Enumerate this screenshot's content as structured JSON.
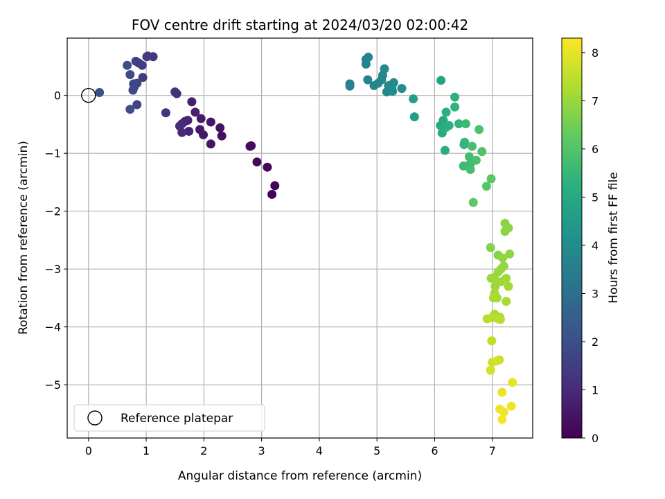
{
  "chart_data": {
    "type": "scatter",
    "title": "FOV centre drift starting at 2024/03/20 02:00:42",
    "xlabel": "Angular distance from reference (arcmin)",
    "ylabel": "Rotation from reference (arcmin)",
    "xlim": [
      -0.37,
      7.7
    ],
    "ylim": [
      -5.92,
      0.99
    ],
    "xticks": [
      0,
      1,
      2,
      3,
      4,
      5,
      6,
      7
    ],
    "yticks": [
      0,
      -1,
      -2,
      -3,
      -4,
      -5
    ],
    "xtick_labels": [
      "0",
      "1",
      "2",
      "3",
      "4",
      "5",
      "6",
      "7"
    ],
    "ytick_labels": [
      "0",
      "−1",
      "−2",
      "−3",
      "−4",
      "−5"
    ],
    "grid": true,
    "colormap": "viridis",
    "colorbar": {
      "label": "Hours from first FF file",
      "range": [
        0,
        8.3
      ],
      "ticks": [
        0,
        1,
        2,
        3,
        4,
        5,
        6,
        7,
        8
      ],
      "tick_labels": [
        "0",
        "1",
        "2",
        "3",
        "4",
        "5",
        "6",
        "7",
        "8"
      ]
    },
    "legend": {
      "position": "lower-left",
      "entries": [
        {
          "name": "Reference platepar",
          "marker": "open-circle"
        }
      ]
    },
    "reference_point": {
      "x": 0,
      "y": 0
    },
    "series": [
      {
        "values": [
          {
            "x": 3.18,
            "y": -1.71,
            "c": 0.05
          },
          {
            "x": 3.23,
            "y": -1.56,
            "c": 0.1
          },
          {
            "x": 3.1,
            "y": -1.24,
            "c": 0.15
          },
          {
            "x": 2.92,
            "y": -1.15,
            "c": 0.2
          },
          {
            "x": 2.82,
            "y": -0.87,
            "c": 0.25
          },
          {
            "x": 2.8,
            "y": -0.88,
            "c": 0.28
          },
          {
            "x": 2.31,
            "y": -0.7,
            "c": 0.35
          },
          {
            "x": 2.28,
            "y": -0.56,
            "c": 0.4
          },
          {
            "x": 2.12,
            "y": -0.84,
            "c": 0.45
          },
          {
            "x": 2.12,
            "y": -0.46,
            "c": 0.5
          },
          {
            "x": 1.99,
            "y": -0.68,
            "c": 0.55
          },
          {
            "x": 1.93,
            "y": -0.59,
            "c": 0.6
          },
          {
            "x": 1.95,
            "y": -0.4,
            "c": 0.65
          },
          {
            "x": 1.85,
            "y": -0.29,
            "c": 0.7
          },
          {
            "x": 1.79,
            "y": -0.11,
            "c": 0.75
          },
          {
            "x": 1.74,
            "y": -0.62,
            "c": 0.8
          },
          {
            "x": 1.72,
            "y": -0.43,
            "c": 0.85
          },
          {
            "x": 1.67,
            "y": -0.45,
            "c": 0.9
          },
          {
            "x": 1.62,
            "y": -0.49,
            "c": 0.95
          },
          {
            "x": 1.62,
            "y": -0.64,
            "c": 1.0
          },
          {
            "x": 1.58,
            "y": -0.53,
            "c": 1.05
          },
          {
            "x": 1.53,
            "y": 0.03,
            "c": 1.1
          },
          {
            "x": 1.5,
            "y": 0.06,
            "c": 1.15
          },
          {
            "x": 1.34,
            "y": -0.3,
            "c": 1.2
          },
          {
            "x": 1.12,
            "y": 0.67,
            "c": 1.3
          },
          {
            "x": 1.03,
            "y": 0.68,
            "c": 1.35
          },
          {
            "x": 1.01,
            "y": 0.67,
            "c": 1.4
          },
          {
            "x": 0.94,
            "y": 0.31,
            "c": 1.45
          },
          {
            "x": 0.93,
            "y": 0.52,
            "c": 1.5
          },
          {
            "x": 0.87,
            "y": 0.56,
            "c": 1.55
          },
          {
            "x": 0.82,
            "y": 0.59,
            "c": 1.6
          },
          {
            "x": 0.84,
            "y": 0.21,
            "c": 1.65
          },
          {
            "x": 0.84,
            "y": -0.16,
            "c": 1.7
          },
          {
            "x": 0.79,
            "y": 0.14,
            "c": 1.75
          },
          {
            "x": 0.78,
            "y": 0.2,
            "c": 1.8
          },
          {
            "x": 0.77,
            "y": 0.09,
            "c": 1.85
          },
          {
            "x": 0.72,
            "y": 0.36,
            "c": 1.9
          },
          {
            "x": 0.67,
            "y": 0.52,
            "c": 1.95
          },
          {
            "x": 0.72,
            "y": -0.24,
            "c": 2.0
          },
          {
            "x": 0.19,
            "y": 0.05,
            "c": 2.05
          },
          {
            "x": 4.53,
            "y": 0.2,
            "c": 3.6
          },
          {
            "x": 4.53,
            "y": 0.16,
            "c": 3.62
          },
          {
            "x": 4.81,
            "y": 0.54,
            "c": 3.65
          },
          {
            "x": 4.81,
            "y": 0.62,
            "c": 3.68
          },
          {
            "x": 4.85,
            "y": 0.66,
            "c": 3.7
          },
          {
            "x": 4.84,
            "y": 0.27,
            "c": 3.72
          },
          {
            "x": 4.95,
            "y": 0.17,
            "c": 3.75
          },
          {
            "x": 5.02,
            "y": 0.21,
            "c": 3.78
          },
          {
            "x": 5.08,
            "y": 0.27,
            "c": 3.8
          },
          {
            "x": 5.1,
            "y": 0.35,
            "c": 3.82
          },
          {
            "x": 5.13,
            "y": 0.46,
            "c": 3.85
          },
          {
            "x": 5.17,
            "y": 0.06,
            "c": 3.88
          },
          {
            "x": 5.2,
            "y": 0.17,
            "c": 3.9
          },
          {
            "x": 5.26,
            "y": 0.13,
            "c": 3.92
          },
          {
            "x": 5.29,
            "y": 0.22,
            "c": 3.95
          },
          {
            "x": 5.27,
            "y": 0.07,
            "c": 3.98
          },
          {
            "x": 5.43,
            "y": 0.12,
            "c": 4.0
          },
          {
            "x": 5.63,
            "y": -0.06,
            "c": 4.6
          },
          {
            "x": 5.65,
            "y": -0.37,
            "c": 4.65
          },
          {
            "x": 6.11,
            "y": 0.26,
            "c": 4.8
          },
          {
            "x": 6.1,
            "y": -0.52,
            "c": 4.9
          },
          {
            "x": 6.13,
            "y": -0.65,
            "c": 5.0
          },
          {
            "x": 6.15,
            "y": -0.43,
            "c": 5.05
          },
          {
            "x": 6.15,
            "y": -0.58,
            "c": 5.1
          },
          {
            "x": 6.18,
            "y": -0.95,
            "c": 5.15
          },
          {
            "x": 6.2,
            "y": -0.55,
            "c": 5.2
          },
          {
            "x": 6.2,
            "y": -0.29,
            "c": 5.22
          },
          {
            "x": 6.25,
            "y": -0.52,
            "c": 5.25
          },
          {
            "x": 6.35,
            "y": -0.03,
            "c": 5.3
          },
          {
            "x": 6.35,
            "y": -0.2,
            "c": 5.35
          },
          {
            "x": 6.42,
            "y": -0.49,
            "c": 5.4
          },
          {
            "x": 6.51,
            "y": -0.85,
            "c": 5.45
          },
          {
            "x": 6.52,
            "y": -0.81,
            "c": 5.5
          },
          {
            "x": 6.54,
            "y": -0.49,
            "c": 5.55
          },
          {
            "x": 6.5,
            "y": -1.22,
            "c": 5.6
          },
          {
            "x": 6.62,
            "y": -1.18,
            "c": 5.65
          },
          {
            "x": 6.6,
            "y": -1.06,
            "c": 5.7
          },
          {
            "x": 6.62,
            "y": -1.28,
            "c": 5.75
          },
          {
            "x": 6.65,
            "y": -0.88,
            "c": 5.8
          },
          {
            "x": 6.72,
            "y": -1.12,
            "c": 5.85
          },
          {
            "x": 6.77,
            "y": -0.59,
            "c": 5.9
          },
          {
            "x": 6.82,
            "y": -0.97,
            "c": 5.95
          },
          {
            "x": 6.9,
            "y": -1.57,
            "c": 6.1
          },
          {
            "x": 6.98,
            "y": -1.44,
            "c": 6.15
          },
          {
            "x": 6.67,
            "y": -1.85,
            "c": 6.2
          },
          {
            "x": 6.97,
            "y": -2.63,
            "c": 6.7
          },
          {
            "x": 7.1,
            "y": -2.76,
            "c": 6.75
          },
          {
            "x": 7.22,
            "y": -2.21,
            "c": 6.8
          },
          {
            "x": 7.22,
            "y": -2.35,
            "c": 6.82
          },
          {
            "x": 7.28,
            "y": -2.29,
            "c": 6.85
          },
          {
            "x": 7.3,
            "y": -2.74,
            "c": 6.88
          },
          {
            "x": 7.18,
            "y": -2.81,
            "c": 6.9
          },
          {
            "x": 7.2,
            "y": -2.95,
            "c": 6.92
          },
          {
            "x": 7.15,
            "y": -3.0,
            "c": 6.95
          },
          {
            "x": 7.1,
            "y": -3.05,
            "c": 6.98
          },
          {
            "x": 7.03,
            "y": -3.15,
            "c": 7.0
          },
          {
            "x": 6.98,
            "y": -3.16,
            "c": 7.02
          },
          {
            "x": 7.05,
            "y": -3.3,
            "c": 7.05
          },
          {
            "x": 7.15,
            "y": -3.22,
            "c": 7.08
          },
          {
            "x": 7.24,
            "y": -3.16,
            "c": 7.1
          },
          {
            "x": 7.28,
            "y": -3.3,
            "c": 7.12
          },
          {
            "x": 7.04,
            "y": -3.42,
            "c": 7.15
          },
          {
            "x": 7.08,
            "y": -3.5,
            "c": 7.18
          },
          {
            "x": 7.02,
            "y": -3.5,
            "c": 7.2
          },
          {
            "x": 7.24,
            "y": -3.56,
            "c": 7.22
          },
          {
            "x": 7.04,
            "y": -3.78,
            "c": 7.25
          },
          {
            "x": 7.08,
            "y": -3.82,
            "c": 7.28
          },
          {
            "x": 7.13,
            "y": -3.83,
            "c": 7.3
          },
          {
            "x": 7.14,
            "y": -3.87,
            "c": 7.32
          },
          {
            "x": 6.91,
            "y": -3.86,
            "c": 7.35
          },
          {
            "x": 7.0,
            "y": -3.84,
            "c": 7.38
          },
          {
            "x": 7.1,
            "y": -3.86,
            "c": 7.4
          },
          {
            "x": 6.99,
            "y": -4.24,
            "c": 7.5
          },
          {
            "x": 7.12,
            "y": -4.57,
            "c": 7.6
          },
          {
            "x": 7.0,
            "y": -4.61,
            "c": 7.65
          },
          {
            "x": 7.07,
            "y": -4.59,
            "c": 7.7
          },
          {
            "x": 6.97,
            "y": -4.75,
            "c": 7.75
          },
          {
            "x": 7.35,
            "y": -4.96,
            "c": 8.0
          },
          {
            "x": 7.17,
            "y": -5.13,
            "c": 8.05
          },
          {
            "x": 7.33,
            "y": -5.37,
            "c": 8.1
          },
          {
            "x": 7.13,
            "y": -5.42,
            "c": 8.12
          },
          {
            "x": 7.2,
            "y": -5.47,
            "c": 8.15
          },
          {
            "x": 7.17,
            "y": -5.6,
            "c": 8.2
          }
        ]
      }
    ]
  }
}
